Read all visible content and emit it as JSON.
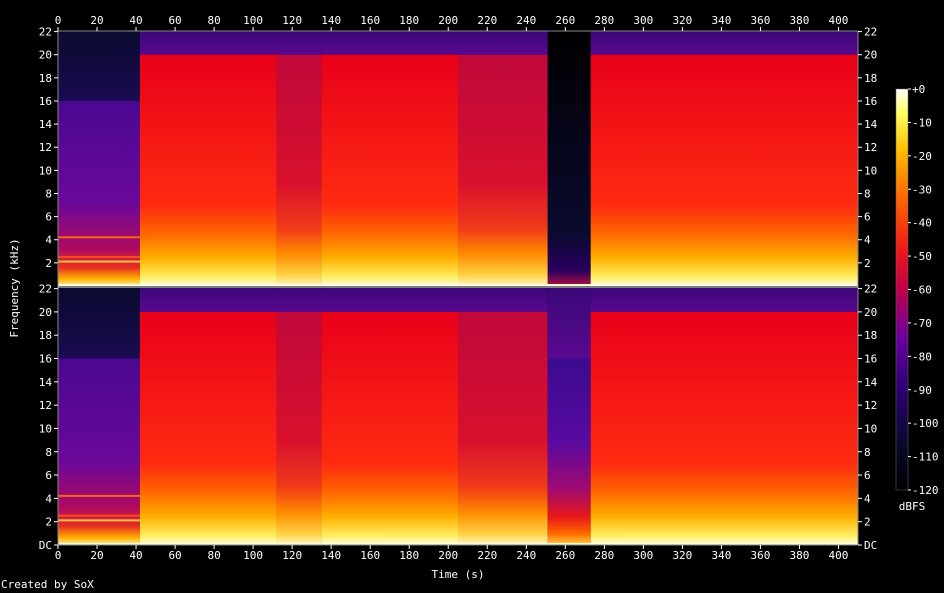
{
  "chart_data": {
    "type": "heatmap",
    "title": "",
    "xlabel": "Time (s)",
    "ylabel": "Frequency (kHz)",
    "xlim": [
      0,
      410
    ],
    "x_ticks": [
      "0",
      "20",
      "40",
      "60",
      "80",
      "100",
      "120",
      "140",
      "160",
      "180",
      "200",
      "220",
      "240",
      "260",
      "280",
      "300",
      "320",
      "340",
      "360",
      "380",
      "400"
    ],
    "y_ticks_upper": [
      "2",
      "4",
      "6",
      "8",
      "10",
      "12",
      "14",
      "16",
      "18",
      "20",
      "22"
    ],
    "y_ticks_lower": [
      "DC",
      "2",
      "4",
      "6",
      "8",
      "10",
      "12",
      "14",
      "16",
      "18",
      "20",
      "22"
    ],
    "ylim_khz": [
      0,
      22.05
    ],
    "colorbar": {
      "label": "dBFS",
      "ticks": [
        "+0",
        "-10",
        "-20",
        "-30",
        "-40",
        "-50",
        "-60",
        "-70",
        "-80",
        "-90",
        "-100",
        "-110",
        "-120"
      ],
      "range": [
        -120,
        0
      ]
    },
    "channels": [
      {
        "segments": [
          {
            "t0": 0,
            "t1": 42,
            "cutoff_khz": 16,
            "level": "quiet"
          },
          {
            "t0": 42,
            "t1": 112,
            "cutoff_khz": 20,
            "level": "loud"
          },
          {
            "t0": 112,
            "t1": 135,
            "cutoff_khz": 20,
            "level": "medium"
          },
          {
            "t0": 135,
            "t1": 205,
            "cutoff_khz": 20,
            "level": "loud"
          },
          {
            "t0": 205,
            "t1": 251,
            "cutoff_khz": 20,
            "level": "medium"
          },
          {
            "t0": 251,
            "t1": 273,
            "cutoff_khz": 0,
            "level": "silent"
          },
          {
            "t0": 273,
            "t1": 410,
            "cutoff_khz": 20,
            "level": "loud"
          }
        ]
      },
      {
        "segments": [
          {
            "t0": 0,
            "t1": 42,
            "cutoff_khz": 16,
            "level": "quiet"
          },
          {
            "t0": 42,
            "t1": 112,
            "cutoff_khz": 20,
            "level": "loud"
          },
          {
            "t0": 112,
            "t1": 135,
            "cutoff_khz": 20,
            "level": "medium"
          },
          {
            "t0": 135,
            "t1": 205,
            "cutoff_khz": 20,
            "level": "loud"
          },
          {
            "t0": 205,
            "t1": 251,
            "cutoff_khz": 20,
            "level": "medium"
          },
          {
            "t0": 251,
            "t1": 273,
            "cutoff_khz": 16,
            "level": "dim"
          },
          {
            "t0": 273,
            "t1": 410,
            "cutoff_khz": 20,
            "level": "loud"
          }
        ]
      }
    ]
  },
  "footer": {
    "credit": "Created by SoX"
  }
}
